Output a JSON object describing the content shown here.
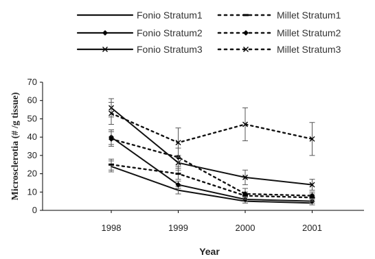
{
  "chart_data": {
    "type": "line",
    "x": [
      1998,
      1999,
      2000,
      2001
    ],
    "xlabel": "Year",
    "ylabel": "Microsclerotia (# /g tissue)",
    "ylim": [
      0,
      70
    ],
    "yticks": [
      0,
      10,
      20,
      30,
      40,
      50,
      60,
      70
    ],
    "grid": false,
    "legend_position": "top",
    "series": [
      {
        "name": "Fonio Stratum1",
        "values": [
          24,
          11,
          5,
          4
        ],
        "errors": [
          3,
          2,
          1,
          1
        ],
        "line": "solid",
        "marker": "none"
      },
      {
        "name": "Fonio Stratum2",
        "values": [
          40,
          14,
          6,
          5
        ],
        "errors": [
          4,
          2,
          1,
          1
        ],
        "line": "solid",
        "marker": "diamond"
      },
      {
        "name": "Fonio Stratum3",
        "values": [
          56,
          26,
          18,
          14
        ],
        "errors": [
          5,
          4,
          4,
          3
        ],
        "line": "solid",
        "marker": "x"
      },
      {
        "name": "Millet Stratum1",
        "values": [
          25,
          20,
          8,
          7
        ],
        "errors": [
          3,
          3,
          2,
          2
        ],
        "line": "dotted",
        "marker": "dash"
      },
      {
        "name": "Millet Stratum2",
        "values": [
          39,
          29,
          9,
          8
        ],
        "errors": [
          4,
          5,
          3,
          2
        ],
        "line": "dotted",
        "marker": "diamond"
      },
      {
        "name": "Millet Stratum3",
        "values": [
          53,
          37,
          47,
          39
        ],
        "errors": [
          6,
          8,
          9,
          9
        ],
        "line": "dotted",
        "marker": "x"
      }
    ]
  }
}
